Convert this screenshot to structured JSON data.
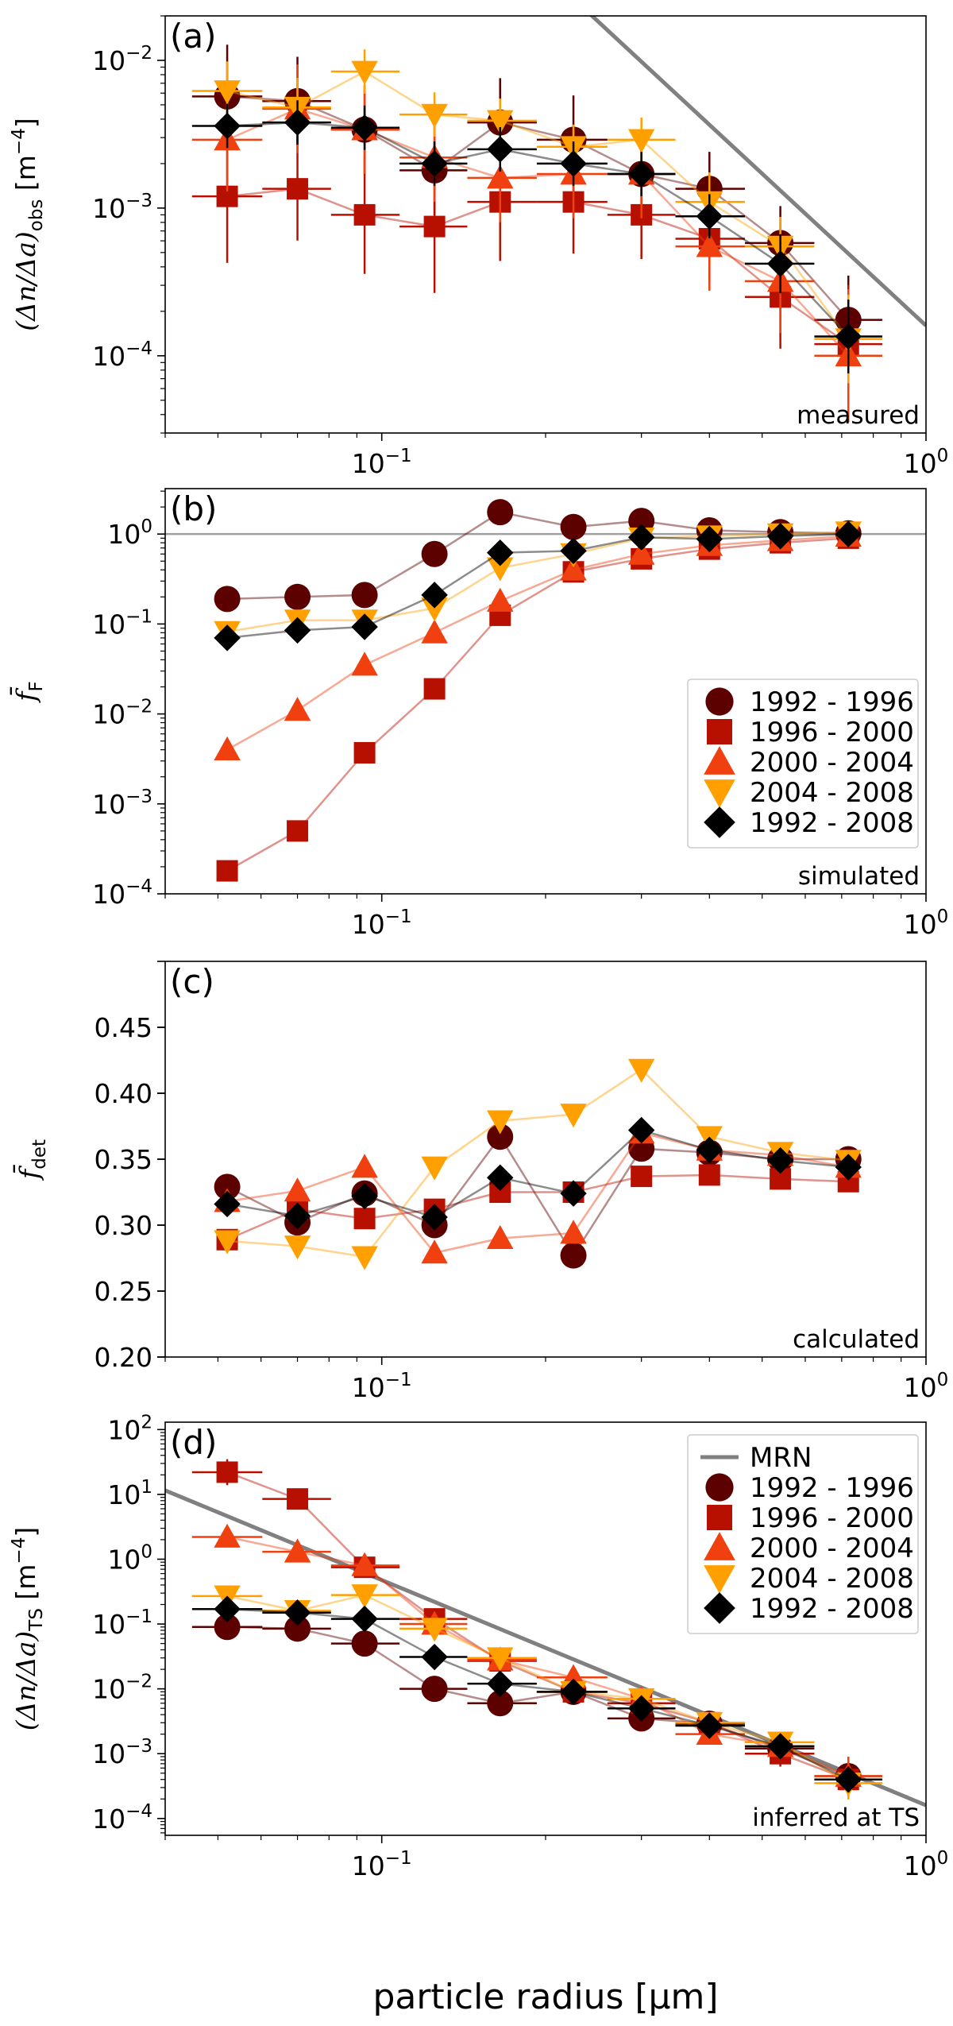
{
  "colors": {
    "1992-1996": "#5c0000",
    "1996-2000": "#b81000",
    "2000-2004": "#f04010",
    "2004-2008": "#ffa000",
    "1992-2008": "#000000",
    "MRN": "#808080"
  },
  "series_names": [
    "1992 - 1996",
    "1996 - 2000",
    "2000 - 2004",
    "2004 - 2008",
    "1992 - 2008"
  ],
  "xlabel": "particle radius [µm]",
  "chart_data": [
    {
      "id": "a",
      "type": "scatter",
      "letter": "(a)",
      "note": "measured",
      "yscale": "log",
      "ylabel": "(Δn/Δa)obs [m⁻⁴]",
      "ylabel_parts": {
        "main": "(Δn/Δa)",
        "sub": "obs",
        "unit": "[m",
        "unit_sup": "−4",
        "unit_end": "]"
      },
      "ylim": [
        3e-05,
        0.02
      ],
      "yticks": [
        {
          "v": 0.01,
          "base": "10",
          "exp": "−2"
        },
        {
          "v": 0.001,
          "base": "10",
          "exp": "−3"
        },
        {
          "v": 0.0001,
          "base": "10",
          "exp": "−4"
        }
      ],
      "show_xerr": true,
      "reference_line": {
        "x": [
          0.24,
          1.0
        ],
        "y": [
          0.021,
          0.00016
        ]
      },
      "series": [
        {
          "name": "1992 - 1996",
          "marker": "circle",
          "x": [
            0.052,
            0.07,
            0.093,
            0.125,
            0.165,
            0.225,
            0.3,
            0.4,
            0.54,
            0.72
          ],
          "y": [
            0.0057,
            0.0053,
            0.0034,
            0.0018,
            0.0038,
            0.0029,
            0.0017,
            0.00135,
            0.00058,
            0.000175
          ],
          "yerr": [
            0.35,
            0.3,
            0.3,
            0.3,
            0.3,
            0.3,
            0.3,
            0.25,
            0.25,
            0.3
          ]
        },
        {
          "name": "1996 - 2000",
          "marker": "square",
          "x": [
            0.052,
            0.07,
            0.093,
            0.125,
            0.165,
            0.225,
            0.3,
            0.4,
            0.54,
            0.72
          ],
          "y": [
            0.0012,
            0.00135,
            0.0009,
            0.00075,
            0.0011,
            0.0011,
            0.0009,
            0.00062,
            0.00025,
            0.00012
          ],
          "yerr": [
            0.45,
            0.35,
            0.4,
            0.45,
            0.4,
            0.35,
            0.3,
            0.3,
            0.35,
            0.4
          ]
        },
        {
          "name": "2000 - 2004",
          "marker": "triangle-up",
          "x": [
            0.052,
            0.07,
            0.093,
            0.125,
            0.165,
            0.225,
            0.3,
            0.4,
            0.54,
            0.72
          ],
          "y": [
            0.0029,
            0.0047,
            0.0034,
            0.0022,
            0.0016,
            0.0017,
            0.0017,
            0.00055,
            0.00032,
            0.0001
          ],
          "yerr": [
            0.35,
            0.3,
            0.3,
            0.3,
            0.3,
            0.3,
            0.3,
            0.3,
            0.35,
            0.45
          ]
        },
        {
          "name": "2004 - 2008",
          "marker": "triangle-down",
          "x": [
            0.052,
            0.07,
            0.093,
            0.125,
            0.165,
            0.225,
            0.3,
            0.4,
            0.54,
            0.72
          ],
          "y": [
            0.0062,
            0.0048,
            0.0084,
            0.0043,
            0.0039,
            0.0026,
            0.0029,
            0.0011,
            0.00055,
            0.00013
          ],
          "yerr": [
            0.2,
            0.2,
            0.15,
            0.15,
            0.15,
            0.15,
            0.15,
            0.2,
            0.2,
            0.3
          ]
        },
        {
          "name": "1992 - 2008",
          "marker": "diamond",
          "x": [
            0.052,
            0.07,
            0.093,
            0.125,
            0.165,
            0.225,
            0.3,
            0.4,
            0.54,
            0.72
          ],
          "y": [
            0.0036,
            0.0038,
            0.0035,
            0.002,
            0.0025,
            0.002,
            0.0017,
            0.00088,
            0.00042,
            0.000135
          ],
          "yerr": [
            0.15,
            0.15,
            0.15,
            0.15,
            0.15,
            0.15,
            0.15,
            0.15,
            0.2,
            0.25
          ]
        }
      ]
    },
    {
      "id": "b",
      "type": "scatter",
      "letter": "(b)",
      "note": "simulated",
      "yscale": "log",
      "ylabel": "f̄F",
      "ylabel_parts": {
        "main": "f̄",
        "sub": "F"
      },
      "ylim": [
        0.0001,
        3.2
      ],
      "yticks": [
        {
          "v": 1,
          "base": "10",
          "exp": "0"
        },
        {
          "v": 0.1,
          "base": "10",
          "exp": "−1"
        },
        {
          "v": 0.01,
          "base": "10",
          "exp": "−2"
        },
        {
          "v": 0.001,
          "base": "10",
          "exp": "−3"
        },
        {
          "v": 0.0001,
          "base": "10",
          "exp": "−4"
        }
      ],
      "hline": 1,
      "legend": {
        "position": "right-middle",
        "entries": [
          "1992 - 1996",
          "1996 - 2000",
          "2000 - 2004",
          "2004 - 2008",
          "1992 - 2008"
        ]
      },
      "series": [
        {
          "name": "1992 - 1996",
          "marker": "circle",
          "x": [
            0.052,
            0.07,
            0.093,
            0.125,
            0.165,
            0.225,
            0.3,
            0.4,
            0.54,
            0.72
          ],
          "y": [
            0.19,
            0.2,
            0.21,
            0.6,
            1.75,
            1.2,
            1.4,
            1.1,
            1.05,
            1.02
          ]
        },
        {
          "name": "1996 - 2000",
          "marker": "square",
          "x": [
            0.052,
            0.07,
            0.093,
            0.125,
            0.165,
            0.225,
            0.3,
            0.4,
            0.54,
            0.72
          ],
          "y": [
            0.00018,
            0.0005,
            0.0037,
            0.019,
            0.125,
            0.38,
            0.53,
            0.68,
            0.8,
            0.9
          ]
        },
        {
          "name": "2000 - 2004",
          "marker": "triangle-up",
          "x": [
            0.052,
            0.07,
            0.093,
            0.125,
            0.165,
            0.225,
            0.3,
            0.4,
            0.54,
            0.72
          ],
          "y": [
            0.004,
            0.011,
            0.035,
            0.08,
            0.18,
            0.4,
            0.6,
            0.75,
            0.85,
            0.95
          ]
        },
        {
          "name": "2004 - 2008",
          "marker": "triangle-down",
          "x": [
            0.052,
            0.07,
            0.093,
            0.125,
            0.165,
            0.225,
            0.3,
            0.4,
            0.54,
            0.72
          ],
          "y": [
            0.082,
            0.11,
            0.11,
            0.15,
            0.42,
            0.6,
            0.9,
            0.95,
            1.0,
            1.05
          ]
        },
        {
          "name": "1992 - 2008",
          "marker": "diamond",
          "x": [
            0.052,
            0.07,
            0.093,
            0.125,
            0.165,
            0.225,
            0.3,
            0.4,
            0.54,
            0.72
          ],
          "y": [
            0.07,
            0.085,
            0.093,
            0.21,
            0.62,
            0.65,
            0.92,
            0.88,
            0.95,
            1.0
          ]
        }
      ]
    },
    {
      "id": "c",
      "type": "scatter",
      "letter": "(c)",
      "note": "calculated",
      "yscale": "linear",
      "ylabel": "f̄det",
      "ylabel_parts": {
        "main": "f̄",
        "sub": "det"
      },
      "ylim": [
        0.2,
        0.5
      ],
      "yticks": [
        {
          "v": 0.2,
          "text": "0.20"
        },
        {
          "v": 0.25,
          "text": "0.25"
        },
        {
          "v": 0.3,
          "text": "0.30"
        },
        {
          "v": 0.35,
          "text": "0.35"
        },
        {
          "v": 0.4,
          "text": "0.40"
        },
        {
          "v": 0.45,
          "text": "0.45"
        }
      ],
      "series": [
        {
          "name": "1992 - 1996",
          "marker": "circle",
          "x": [
            0.052,
            0.07,
            0.093,
            0.125,
            0.165,
            0.225,
            0.3,
            0.4,
            0.54,
            0.72
          ],
          "y": [
            0.329,
            0.302,
            0.324,
            0.3,
            0.367,
            0.277,
            0.358,
            0.355,
            0.35,
            0.35
          ]
        },
        {
          "name": "1996 - 2000",
          "marker": "square",
          "x": [
            0.052,
            0.07,
            0.093,
            0.125,
            0.165,
            0.225,
            0.3,
            0.4,
            0.54,
            0.72
          ],
          "y": [
            0.289,
            0.312,
            0.305,
            0.312,
            0.325,
            0.325,
            0.337,
            0.338,
            0.335,
            0.333
          ]
        },
        {
          "name": "2000 - 2004",
          "marker": "triangle-up",
          "x": [
            0.052,
            0.07,
            0.093,
            0.125,
            0.165,
            0.225,
            0.3,
            0.4,
            0.54,
            0.72
          ],
          "y": [
            0.318,
            0.326,
            0.344,
            0.279,
            0.29,
            0.294,
            0.37,
            0.357,
            0.353,
            0.344
          ]
        },
        {
          "name": "2004 - 2008",
          "marker": "triangle-down",
          "x": [
            0.052,
            0.07,
            0.093,
            0.125,
            0.165,
            0.225,
            0.3,
            0.4,
            0.54,
            0.72
          ],
          "y": [
            0.288,
            0.284,
            0.276,
            0.344,
            0.379,
            0.384,
            0.418,
            0.367,
            0.355,
            0.349
          ]
        },
        {
          "name": "1992 - 2008",
          "marker": "diamond",
          "x": [
            0.052,
            0.07,
            0.093,
            0.125,
            0.165,
            0.225,
            0.3,
            0.4,
            0.54,
            0.72
          ],
          "y": [
            0.316,
            0.307,
            0.322,
            0.306,
            0.336,
            0.324,
            0.372,
            0.357,
            0.349,
            0.344
          ]
        }
      ]
    },
    {
      "id": "d",
      "type": "scatter",
      "letter": "(d)",
      "note": "inferred at TS",
      "yscale": "log",
      "ylabel": "(Δn/Δa)TS [m⁻⁴]",
      "ylabel_parts": {
        "main": "(Δn/Δa)",
        "sub": "TS",
        "unit": "[m",
        "unit_sup": "−4",
        "unit_end": "]"
      },
      "ylim": [
        5.5e-05,
        130
      ],
      "yticks": [
        {
          "v": 100,
          "base": "10",
          "exp": "2"
        },
        {
          "v": 10,
          "base": "10",
          "exp": "1"
        },
        {
          "v": 1,
          "base": "10",
          "exp": "0"
        },
        {
          "v": 0.1,
          "base": "10",
          "exp": "−1"
        },
        {
          "v": 0.01,
          "base": "10",
          "exp": "−2"
        },
        {
          "v": 0.001,
          "base": "10",
          "exp": "−3"
        },
        {
          "v": 0.0001,
          "base": "10",
          "exp": "−4"
        }
      ],
      "show_xerr": true,
      "reference_line": {
        "x": [
          0.04,
          1.0
        ],
        "y": [
          11.5,
          0.00016
        ]
      },
      "legend": {
        "position": "top-right",
        "entries": [
          "MRN",
          "1992 - 1996",
          "1996 - 2000",
          "2000 - 2004",
          "2004 - 2008",
          "1992 - 2008"
        ]
      },
      "series": [
        {
          "name": "1992 - 1996",
          "marker": "circle",
          "x": [
            0.052,
            0.07,
            0.093,
            0.125,
            0.165,
            0.225,
            0.3,
            0.4,
            0.54,
            0.72
          ],
          "y": [
            0.09,
            0.085,
            0.05,
            0.01,
            0.006,
            0.009,
            0.0035,
            0.0029,
            0.0012,
            0.00045
          ],
          "yerr": [
            0.1,
            0.1,
            0.1,
            0.1,
            0.1,
            0.1,
            0.1,
            0.15,
            0.2,
            0.25
          ]
        },
        {
          "name": "1996 - 2000",
          "marker": "square",
          "x": [
            0.052,
            0.07,
            0.093,
            0.125,
            0.165,
            0.225,
            0.3,
            0.4,
            0.54,
            0.72
          ],
          "y": [
            22,
            8.5,
            0.75,
            0.12,
            0.027,
            0.009,
            0.006,
            0.003,
            0.001,
            0.0004
          ],
          "yerr": [
            0.2,
            0.15,
            0.15,
            0.15,
            0.15,
            0.15,
            0.15,
            0.15,
            0.2,
            0.3
          ]
        },
        {
          "name": "2000 - 2004",
          "marker": "triangle-up",
          "x": [
            0.052,
            0.07,
            0.093,
            0.125,
            0.165,
            0.225,
            0.3,
            0.4,
            0.54,
            0.72
          ],
          "y": [
            2.2,
            1.3,
            0.8,
            0.1,
            0.028,
            0.015,
            0.007,
            0.002,
            0.0013,
            0.00045
          ],
          "yerr": [
            0.15,
            0.15,
            0.15,
            0.15,
            0.15,
            0.15,
            0.15,
            0.15,
            0.2,
            0.3
          ]
        },
        {
          "name": "2004 - 2008",
          "marker": "triangle-down",
          "x": [
            0.052,
            0.07,
            0.093,
            0.125,
            0.165,
            0.225,
            0.3,
            0.4,
            0.54,
            0.72
          ],
          "y": [
            0.27,
            0.16,
            0.28,
            0.085,
            0.03,
            0.009,
            0.007,
            0.003,
            0.0015,
            0.00035
          ],
          "yerr": [
            0.1,
            0.1,
            0.1,
            0.1,
            0.1,
            0.1,
            0.1,
            0.1,
            0.15,
            0.25
          ]
        },
        {
          "name": "1992 - 2008",
          "marker": "diamond",
          "x": [
            0.052,
            0.07,
            0.093,
            0.125,
            0.165,
            0.225,
            0.3,
            0.4,
            0.54,
            0.72
          ],
          "y": [
            0.17,
            0.15,
            0.12,
            0.031,
            0.012,
            0.009,
            0.005,
            0.0027,
            0.0013,
            0.0004
          ],
          "yerr": [
            0.1,
            0.1,
            0.1,
            0.1,
            0.1,
            0.1,
            0.1,
            0.1,
            0.15,
            0.2
          ]
        }
      ]
    }
  ],
  "xaxis": {
    "scale": "log",
    "xlim": [
      0.04,
      1.0
    ],
    "ticks": [
      {
        "v": 0.1,
        "base": "10",
        "exp": "−1"
      },
      {
        "v": 1,
        "base": "10",
        "exp": "0"
      }
    ]
  }
}
